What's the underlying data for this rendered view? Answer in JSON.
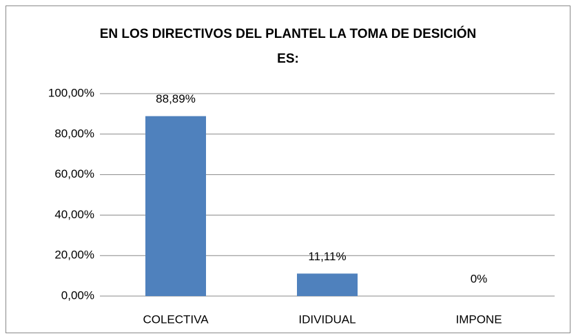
{
  "chart_data": {
    "type": "bar",
    "title": "EN LOS DIRECTIVOS DEL PLANTEL LA TOMA DE DESICIÓN ES:",
    "categories": [
      "COLECTIVA",
      "IDIVIDUAL",
      "IMPONE"
    ],
    "values": [
      88.89,
      11.11,
      0
    ],
    "value_labels": [
      "88,89%",
      "11,11%",
      "0%"
    ],
    "color": "#4f81bd",
    "ylim": [
      0,
      100
    ],
    "yticks": [
      {
        "value": 0,
        "label": "0,00%"
      },
      {
        "value": 20,
        "label": "20,00%"
      },
      {
        "value": 40,
        "label": "40,00%"
      },
      {
        "value": 60,
        "label": "60,00%"
      },
      {
        "value": 80,
        "label": "80,00%"
      },
      {
        "value": 100,
        "label": "100,00%"
      }
    ],
    "grid": true
  }
}
